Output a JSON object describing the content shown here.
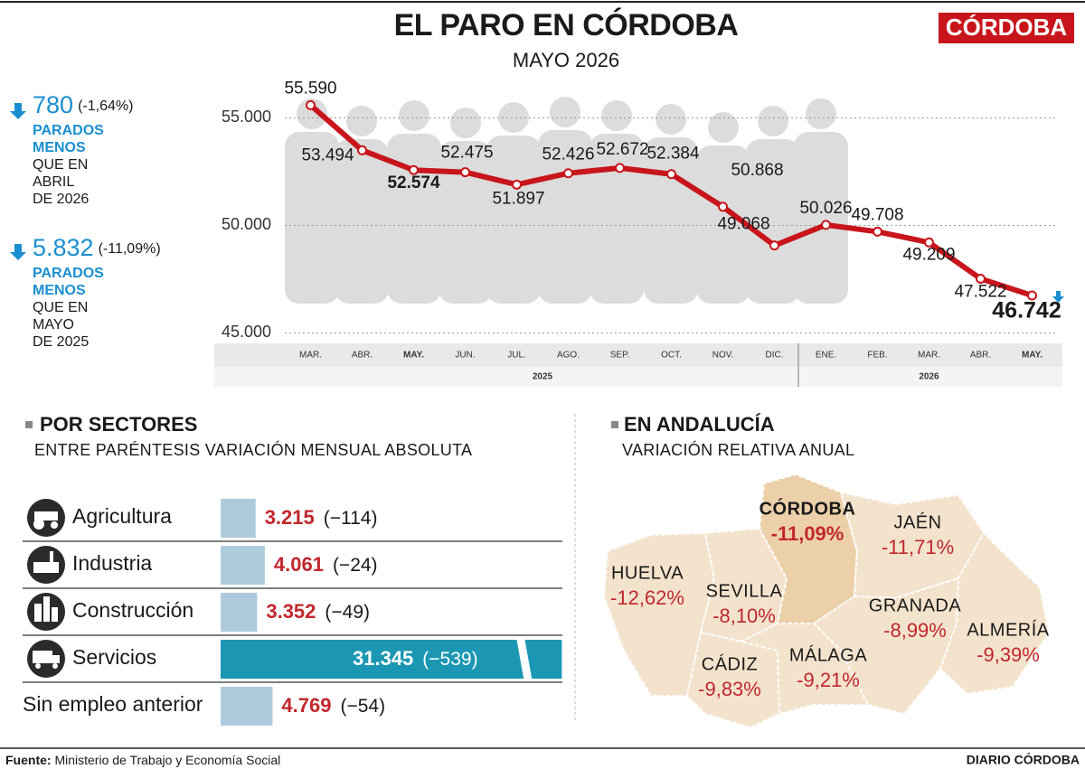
{
  "header": {
    "title": "EL PARO EN CÓRDOBA",
    "subtitle": "MAYO 2026",
    "brand": "CÓRDOBA"
  },
  "highlights": [
    {
      "value": "780",
      "change": "(-1,64%)",
      "emphasis": [
        "PARADOS",
        "MENOS"
      ],
      "text": [
        "QUE EN",
        "ABRIL",
        "DE 2026"
      ]
    },
    {
      "value": "5.832",
      "change": "(-11,09%)",
      "emphasis": [
        "PARADOS",
        "MENOS"
      ],
      "text": [
        "QUE EN",
        "MAYO",
        "DE 2025"
      ]
    }
  ],
  "chart_data": {
    "type": "line",
    "categories": [
      "MAR.",
      "ABR.",
      "MAY.",
      "JUN.",
      "JUL.",
      "AGO.",
      "SEP.",
      "OCT.",
      "NOV.",
      "DIC.",
      "ENE.",
      "FEB.",
      "MAR.",
      "ABR.",
      "MAY."
    ],
    "category_groups": [
      {
        "label": "2025",
        "size": 10
      },
      {
        "label": "2026",
        "size": 5
      }
    ],
    "series": [
      {
        "color": "#c8151b",
        "values": [
          55590,
          53494,
          52574,
          52475,
          51897,
          52426,
          52672,
          52384,
          50868,
          49068,
          50026,
          49708,
          49209,
          47522,
          46742
        ],
        "value_labels": [
          "55.590",
          "53.494",
          "52.574",
          "52.475",
          "51.897",
          "52.426",
          "52.672",
          "52.384",
          "50.868",
          "49.068",
          "50.026",
          "49.708",
          "49.209",
          "47.522",
          "46.742"
        ]
      }
    ],
    "ylim": [
      44600,
      56700
    ],
    "yticks": [
      {
        "value": 45000,
        "label": "45.000"
      },
      {
        "value": 50000,
        "label": "50.000"
      },
      {
        "value": 55000,
        "label": "55.000"
      }
    ],
    "grid": true
  },
  "sectors": {
    "title": "POR SECTORES",
    "subtitle": "ENTRE PARÉNTESIS VARIACIÓN MENSUAL ABSOLUTA",
    "type": "bar",
    "categories": [
      "Agricultura",
      "Industria",
      "Construcción",
      "Servicios",
      "Sin empleo anterior"
    ],
    "values": [
      3215,
      4061,
      3352,
      31345,
      4769
    ],
    "value_labels": [
      "3.215",
      "4.061",
      "3.352",
      "31.345",
      "4.769"
    ],
    "changes": [
      "(−114)",
      "(−24)",
      "(−49)",
      "(−539)",
      "(−54)"
    ],
    "colors": [
      "#aecbdd",
      "#aecbdd",
      "#aecbdd",
      "#1b97b3",
      "#aecbdd"
    ],
    "xlim": [
      0,
      31400
    ]
  },
  "andalucia": {
    "title": "EN ANDALUCÍA",
    "subtitle": "VARIACIÓN RELATIVA ANUAL",
    "regions": [
      {
        "name": "CÓRDOBA",
        "label": "-11,09%"
      },
      {
        "name": "JAÉN",
        "label": "-11,71%"
      },
      {
        "name": "HUELVA",
        "label": "-12,62%"
      },
      {
        "name": "SEVILLA",
        "label": "-8,10%"
      },
      {
        "name": "GRANADA",
        "label": "-8,99%"
      },
      {
        "name": "ALMERÍA",
        "label": "-9,39%"
      },
      {
        "name": "CÁDIZ",
        "label": "-9,83%"
      },
      {
        "name": "MÁLAGA",
        "label": "-9,21%"
      }
    ]
  },
  "footer": {
    "source_label": "Fuente:",
    "source": "Ministerio de Trabajo y Economía Social",
    "publisher": "DIARIO CÓRDOBA"
  }
}
